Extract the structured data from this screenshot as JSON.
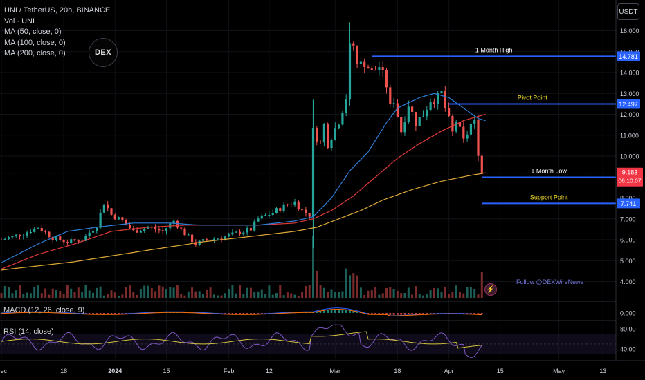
{
  "header": {
    "legend": [
      "UNI / TetherUS, 20h, BINANCE",
      "Vol · UNI",
      "MA (50, close, 0)",
      "MA (100, close, 0)",
      "MA (200, close, 0)"
    ],
    "currency_button": "USDT",
    "logo_text": "DEX",
    "follow_text": "Follow @DEXWireNews"
  },
  "panes": {
    "macd_label": "MACD (12, 26, close, 9)",
    "rsi_label": "RSI (14, close)"
  },
  "colors": {
    "up": "#26a69a",
    "down": "#ef5350",
    "ma50": "#2f7fd8",
    "ma100": "#e03a3a",
    "ma200": "#e0a93a",
    "level_line": "#2962ff",
    "annotation_white": "#ffffff",
    "annotation_yellow": "#f5e12c",
    "price_badge": "#f23645",
    "rsi_line": "#7e57c2",
    "rsi_signal": "#d4c341"
  },
  "chart_data": {
    "type": "candlestick",
    "symbol": "UNI / TetherUS",
    "timeframe": "20h",
    "exchange": "BINANCE",
    "y_ticks": [
      "16.000",
      "15.000",
      "14.000",
      "13.000",
      "12.000",
      "11.000",
      "10.000",
      "8.000",
      "7.000",
      "6.000",
      "5.000",
      "4.000"
    ],
    "x_ticks": [
      {
        "label": "Dec",
        "t": 0.0
      },
      {
        "label": "18",
        "t": 17.0
      },
      {
        "label": "2024",
        "t": 31.0
      },
      {
        "label": "15",
        "t": 45.0
      },
      {
        "label": "Feb",
        "t": 62.0
      },
      {
        "label": "12",
        "t": 73.0
      },
      {
        "label": "Mar",
        "t": 91.0
      },
      {
        "label": "18",
        "t": 108.0
      },
      {
        "label": "Apr",
        "t": 122.0
      },
      {
        "label": "15",
        "t": 136.0
      },
      {
        "label": "May",
        "t": 152.0
      },
      {
        "label": "13",
        "t": 164.0
      }
    ],
    "price_path": [
      [
        0,
        6.0
      ],
      [
        6,
        6.3
      ],
      [
        10,
        6.6
      ],
      [
        14,
        6.1
      ],
      [
        18,
        5.9
      ],
      [
        22,
        6.0
      ],
      [
        26,
        6.7
      ],
      [
        28,
        7.8
      ],
      [
        30,
        7.2
      ],
      [
        33,
        6.9
      ],
      [
        36,
        6.4
      ],
      [
        40,
        6.6
      ],
      [
        44,
        6.4
      ],
      [
        47,
        6.9
      ],
      [
        50,
        6.3
      ],
      [
        53,
        5.8
      ],
      [
        56,
        6.0
      ],
      [
        60,
        6.1
      ],
      [
        64,
        6.3
      ],
      [
        68,
        6.5
      ],
      [
        70,
        7.0
      ],
      [
        74,
        7.3
      ],
      [
        78,
        7.7
      ],
      [
        80,
        7.8
      ],
      [
        82,
        7.4
      ],
      [
        84,
        7.2
      ],
      [
        85,
        11.2
      ],
      [
        87,
        10.6
      ],
      [
        88,
        11.5
      ],
      [
        89,
        10.6
      ],
      [
        92,
        11.7
      ],
      [
        94,
        12.8
      ],
      [
        95,
        15.3
      ],
      [
        96,
        15.1
      ],
      [
        97,
        14.2
      ],
      [
        99,
        14.5
      ],
      [
        101,
        14.0
      ],
      [
        103,
        14.3
      ],
      [
        105,
        13.4
      ],
      [
        106,
        12.3
      ],
      [
        107,
        12.7
      ],
      [
        109,
        11.2
      ],
      [
        111,
        12.5
      ],
      [
        113,
        11.6
      ],
      [
        115,
        12.0
      ],
      [
        117,
        12.7
      ],
      [
        119,
        12.8
      ],
      [
        120,
        13.0
      ],
      [
        121,
        12.3
      ],
      [
        123,
        11.1
      ],
      [
        124,
        11.7
      ],
      [
        126,
        10.7
      ],
      [
        128,
        11.5
      ],
      [
        129,
        11.6
      ],
      [
        130,
        10.2
      ],
      [
        131,
        9.18
      ]
    ],
    "ma50_path": [
      [
        0,
        4.9
      ],
      [
        10,
        5.8
      ],
      [
        18,
        6.4
      ],
      [
        26,
        6.6
      ],
      [
        36,
        6.8
      ],
      [
        46,
        6.8
      ],
      [
        54,
        6.7
      ],
      [
        62,
        6.7
      ],
      [
        70,
        6.7
      ],
      [
        80,
        6.9
      ],
      [
        85,
        7.1
      ],
      [
        90,
        8.0
      ],
      [
        95,
        9.3
      ],
      [
        100,
        10.2
      ],
      [
        105,
        11.6
      ],
      [
        108,
        12.3
      ],
      [
        114,
        12.8
      ],
      [
        118,
        13.0
      ],
      [
        122,
        12.8
      ],
      [
        126,
        12.3
      ],
      [
        130,
        11.8
      ],
      [
        132,
        11.7
      ]
    ],
    "ma100_path": [
      [
        0,
        4.6
      ],
      [
        10,
        5.3
      ],
      [
        20,
        5.8
      ],
      [
        30,
        6.4
      ],
      [
        40,
        6.6
      ],
      [
        50,
        6.7
      ],
      [
        60,
        6.7
      ],
      [
        70,
        6.7
      ],
      [
        80,
        6.8
      ],
      [
        85,
        7.0
      ],
      [
        90,
        7.4
      ],
      [
        96,
        8.1
      ],
      [
        102,
        9.0
      ],
      [
        108,
        9.9
      ],
      [
        114,
        10.6
      ],
      [
        120,
        11.2
      ],
      [
        126,
        11.7
      ],
      [
        132,
        12.0
      ]
    ],
    "ma200_path": [
      [
        0,
        4.55
      ],
      [
        20,
        4.95
      ],
      [
        40,
        5.5
      ],
      [
        55,
        5.9
      ],
      [
        70,
        6.2
      ],
      [
        80,
        6.4
      ],
      [
        86,
        6.6
      ],
      [
        92,
        7.0
      ],
      [
        98,
        7.4
      ],
      [
        104,
        7.9
      ],
      [
        112,
        8.4
      ],
      [
        120,
        8.8
      ],
      [
        127,
        9.05
      ],
      [
        132,
        9.2
      ]
    ],
    "levels": [
      {
        "label": "1 Month High",
        "value": "14.781",
        "y": 14.781,
        "t_start": 101,
        "label_color": "#ffffff"
      },
      {
        "label": "Pivot Point",
        "value": "12.497",
        "y": 12.497,
        "t_start": 122,
        "label_color": "#f5e12c"
      },
      {
        "label": "1 Month Low",
        "value": "8.992",
        "y": 8.992,
        "t_start": 131,
        "label_color": "#ffffff"
      },
      {
        "label": "Support Point",
        "value": "7.741",
        "y": 7.741,
        "t_start": 131,
        "label_color": "#f5e12c"
      }
    ],
    "last_price": "9.183",
    "last_price_y": 9.183,
    "countdown": "06:10:07",
    "macd_ticks": [
      "0.000"
    ],
    "rsi_ticks": [
      "80.00",
      "40.00"
    ]
  }
}
